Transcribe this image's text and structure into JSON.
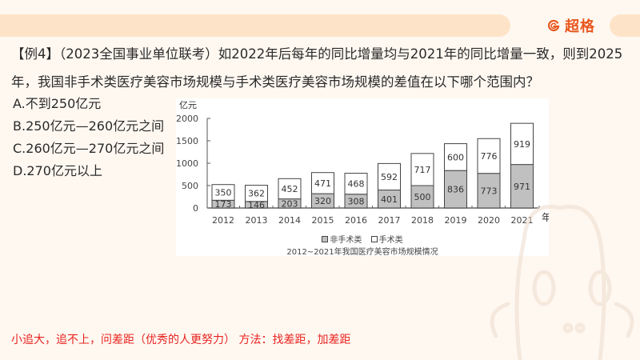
{
  "header": {
    "logo_text": "超格",
    "logo_icon": "g-circle-logo-icon",
    "accent_color": "#e8571f"
  },
  "question": {
    "label": "【例4】",
    "source": "（2023全国事业单位联考）",
    "text_line1": "如2022年后每年的同比增量均与2021年的同比增量一致，则到2025",
    "text_line2": "年，我国非手术类医疗美容市场规模与手术类医疗美容市场规模的差值在以下哪个范围内？"
  },
  "options": [
    {
      "key": "A",
      "label": "A.不到250亿元"
    },
    {
      "key": "B",
      "label": "B.250亿元—260亿元之间"
    },
    {
      "key": "C",
      "label": "C.260亿元—270亿元之间"
    },
    {
      "key": "D",
      "label": "D.270亿元以上"
    }
  ],
  "chart": {
    "y_unit": "亿元",
    "x_unit": "年",
    "legend": [
      {
        "name": "非手术类",
        "color": "#c0c0c0"
      },
      {
        "name": "手术类",
        "color": "#ffffff"
      }
    ],
    "title": "2012~2021年我国医疗美容市场规模情况"
  },
  "chart_data": {
    "type": "bar",
    "stacked": true,
    "title": "2012~2021年我国医疗美容市场规模情况",
    "xlabel": "年",
    "ylabel": "亿元",
    "ylim": [
      0,
      2000
    ],
    "yticks": [
      0,
      500,
      1000,
      1500,
      2000
    ],
    "categories": [
      "2012",
      "2013",
      "2014",
      "2015",
      "2016",
      "2017",
      "2018",
      "2019",
      "2020",
      "2021"
    ],
    "series": [
      {
        "name": "非手术类",
        "color": "#c0c0c0",
        "values": [
          173,
          146,
          203,
          320,
          308,
          401,
          500,
          836,
          773,
          971
        ]
      },
      {
        "name": "手术类",
        "color": "#ffffff",
        "values": [
          350,
          362,
          452,
          471,
          468,
          592,
          717,
          600,
          776,
          919
        ]
      }
    ],
    "legend_position": "bottom",
    "grid": false
  },
  "hint": {
    "text": "小追大，追不上，问差距（优秀的人更努力）   方法：找差距，加差距",
    "color": "#e8231f"
  }
}
